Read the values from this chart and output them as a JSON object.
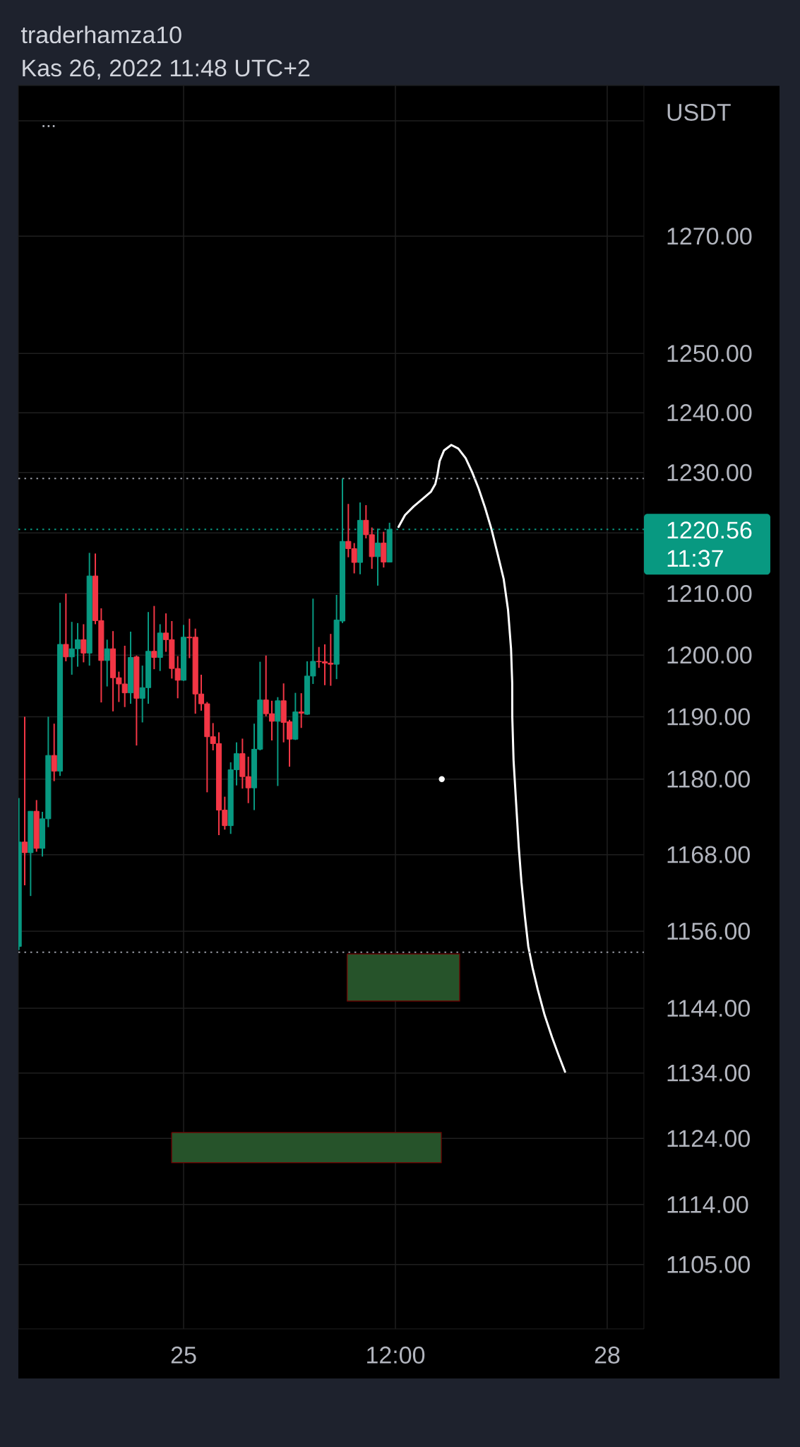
{
  "chart_data": {
    "type": "candlestick",
    "title": "traderhamza10",
    "subtitle": "Kas 26, 2022 11:48 UTC+2",
    "ylabel": "USDT",
    "x": [
      "2022-11-23T20:00",
      "2022-11-23T21:00",
      "2022-11-23T22:00",
      "2022-11-23T23:00",
      "2022-11-24T00:00",
      "2022-11-24T01:00",
      "2022-11-24T02:00",
      "2022-11-24T03:00",
      "2022-11-24T04:00",
      "2022-11-24T05:00",
      "2022-11-24T06:00",
      "2022-11-24T07:00",
      "2022-11-24T08:00",
      "2022-11-24T09:00",
      "2022-11-24T10:00",
      "2022-11-24T11:00",
      "2022-11-24T12:00",
      "2022-11-24T13:00",
      "2022-11-24T14:00",
      "2022-11-24T15:00",
      "2022-11-24T16:00",
      "2022-11-24T17:00",
      "2022-11-24T18:00",
      "2022-11-24T19:00",
      "2022-11-24T20:00",
      "2022-11-24T21:00",
      "2022-11-24T22:00",
      "2022-11-24T23:00",
      "2022-11-25T00:00",
      "2022-11-25T01:00",
      "2022-11-25T02:00",
      "2022-11-25T03:00",
      "2022-11-25T04:00",
      "2022-11-25T05:00",
      "2022-11-25T06:00",
      "2022-11-25T07:00",
      "2022-11-25T08:00",
      "2022-11-25T09:00",
      "2022-11-25T10:00",
      "2022-11-25T11:00",
      "2022-11-25T12:00",
      "2022-11-25T13:00",
      "2022-11-25T14:00",
      "2022-11-25T15:00",
      "2022-11-25T16:00",
      "2022-11-25T17:00",
      "2022-11-25T18:00",
      "2022-11-25T19:00",
      "2022-11-25T20:00",
      "2022-11-25T21:00",
      "2022-11-25T22:00",
      "2022-11-25T23:00",
      "2022-11-26T00:00",
      "2022-11-26T01:00",
      "2022-11-26T02:00",
      "2022-11-26T03:00",
      "2022-11-26T04:00",
      "2022-11-26T05:00",
      "2022-11-26T06:00",
      "2022-11-26T07:00",
      "2022-11-26T08:00",
      "2022-11-26T09:00",
      "2022-11-26T10:00",
      "2022-11-26T11:00"
    ],
    "ohlc": [
      [
        1153.6,
        1177.0,
        1153.0,
        1170.0
      ],
      [
        1170.0,
        1190.0,
        1163.2,
        1168.3
      ],
      [
        1168.3,
        1174.9,
        1161.5,
        1174.9
      ],
      [
        1174.9,
        1176.7,
        1168.5,
        1169.0
      ],
      [
        1169.0,
        1174.8,
        1167.7,
        1173.7
      ],
      [
        1173.7,
        1190.0,
        1172.4,
        1183.8
      ],
      [
        1183.8,
        1188.9,
        1179.7,
        1181.3
      ],
      [
        1181.3,
        1208.5,
        1180.5,
        1201.7
      ],
      [
        1201.7,
        1210.0,
        1199.0,
        1199.7
      ],
      [
        1199.7,
        1205.4,
        1196.8,
        1201.0
      ],
      [
        1201.0,
        1205.2,
        1198.1,
        1202.5
      ],
      [
        1202.5,
        1205.0,
        1198.8,
        1200.3
      ],
      [
        1200.3,
        1216.7,
        1198.3,
        1212.9
      ],
      [
        1212.9,
        1216.6,
        1205.0,
        1205.6
      ],
      [
        1205.6,
        1207.6,
        1192.3,
        1199.1
      ],
      [
        1199.1,
        1202.5,
        1194.9,
        1201.0
      ],
      [
        1201.0,
        1203.9,
        1190.9,
        1196.3
      ],
      [
        1196.3,
        1197.3,
        1192.4,
        1195.3
      ],
      [
        1195.3,
        1201.5,
        1191.6,
        1193.9
      ],
      [
        1193.9,
        1203.8,
        1192.1,
        1199.6
      ],
      [
        1199.7,
        1199.9,
        1185.4,
        1193.0
      ],
      [
        1193.0,
        1198.3,
        1189.1,
        1194.7
      ],
      [
        1194.7,
        1207.0,
        1192.1,
        1200.6
      ],
      [
        1200.6,
        1208.0,
        1197.7,
        1199.6
      ],
      [
        1199.6,
        1205.0,
        1197.4,
        1203.6
      ],
      [
        1203.6,
        1206.8,
        1200.5,
        1202.5
      ],
      [
        1202.5,
        1205.5,
        1196.2,
        1197.8
      ],
      [
        1197.8,
        1199.8,
        1193.0,
        1195.9
      ],
      [
        1195.9,
        1204.9,
        1195.8,
        1202.9
      ],
      [
        1202.9,
        1205.9,
        1199.5,
        1202.8
      ],
      [
        1202.9,
        1204.3,
        1190.5,
        1193.7
      ],
      [
        1193.7,
        1196.8,
        1191.0,
        1192.1
      ],
      [
        1192.1,
        1192.4,
        1177.9,
        1186.8
      ],
      [
        1186.8,
        1189.0,
        1184.6,
        1185.7
      ],
      [
        1185.7,
        1187.5,
        1171.1,
        1175.1
      ],
      [
        1175.1,
        1177.2,
        1172.0,
        1172.6
      ],
      [
        1172.6,
        1182.7,
        1171.3,
        1181.5
      ],
      [
        1181.5,
        1185.9,
        1179.0,
        1184.1
      ],
      [
        1184.1,
        1186.5,
        1178.5,
        1180.4
      ],
      [
        1180.4,
        1183.6,
        1176.2,
        1178.6
      ],
      [
        1178.6,
        1188.9,
        1175.1,
        1184.8
      ],
      [
        1184.8,
        1198.9,
        1184.6,
        1192.7
      ],
      [
        1192.7,
        1199.9,
        1190.1,
        1190.5
      ],
      [
        1190.5,
        1192.6,
        1186.2,
        1189.3
      ],
      [
        1189.3,
        1193.2,
        1178.9,
        1192.6
      ],
      [
        1192.6,
        1195.4,
        1185.9,
        1189.1
      ],
      [
        1189.2,
        1189.5,
        1182.0,
        1186.4
      ],
      [
        1186.4,
        1193.9,
        1186.3,
        1190.8
      ],
      [
        1190.8,
        1193.8,
        1188.2,
        1190.6
      ],
      [
        1190.4,
        1199.0,
        1190.3,
        1196.6
      ],
      [
        1196.6,
        1209.2,
        1195.3,
        1199.0
      ],
      [
        1199.0,
        1201.3,
        1197.9,
        1198.9
      ],
      [
        1198.9,
        1201.7,
        1195.1,
        1198.7
      ],
      [
        1198.7,
        1203.4,
        1195.0,
        1198.5
      ],
      [
        1198.5,
        1209.8,
        1196.1,
        1205.7
      ],
      [
        1205.5,
        1229.0,
        1205.2,
        1218.6
      ],
      [
        1218.6,
        1224.8,
        1216.0,
        1217.4
      ],
      [
        1217.4,
        1218.3,
        1213.3,
        1215.1
      ],
      [
        1215.1,
        1225.0,
        1213.2,
        1222.1
      ],
      [
        1222.1,
        1224.6,
        1219.1,
        1219.7
      ],
      [
        1219.7,
        1220.9,
        1214.1,
        1216.1
      ],
      [
        1216.1,
        1220.7,
        1211.3,
        1218.3
      ],
      [
        1218.3,
        1220.2,
        1214.3,
        1215.2
      ],
      [
        1215.2,
        1221.7,
        1215.2,
        1220.56
      ]
    ],
    "colors": [
      "#089981",
      "#f23645",
      "#089981",
      "#f23645",
      "#089981",
      "#089981",
      "#f23645",
      "#089981",
      "#f23645",
      "#089981",
      "#089981",
      "#f23645",
      "#089981",
      "#f23645",
      "#f23645",
      "#089981",
      "#f23645",
      "#f23645",
      "#f23645",
      "#089981",
      "#f23645",
      "#089981",
      "#089981",
      "#f23645",
      "#089981",
      "#f23645",
      "#f23645",
      "#f23645",
      "#089981",
      "#f23645",
      "#f23645",
      "#f23645",
      "#f23645",
      "#f23645",
      "#f23645",
      "#f23645",
      "#089981",
      "#089981",
      "#f23645",
      "#f23645",
      "#089981",
      "#089981",
      "#f23645",
      "#f23645",
      "#089981",
      "#f23645",
      "#f23645",
      "#089981",
      "#f23645",
      "#089981",
      "#089981",
      "#f23645",
      "#f23645",
      "#f23645",
      "#089981",
      "#089981",
      "#f23645",
      "#f23645",
      "#089981",
      "#f23645",
      "#f23645",
      "#089981",
      "#f23645",
      "#089981"
    ],
    "series": [
      {
        "type": "area",
        "color": "#26532a",
        "x": [
          "2022-11-26T03:48",
          "2022-11-26T22:55"
        ],
        "values": [
          null,
          null
        ],
        "lower": [
          1145.1,
          1145.1
        ],
        "upper": [
          1152.4,
          1152.4
        ]
      },
      {
        "type": "area",
        "color": "#26532a",
        "x": [
          "2022-11-24T21:58",
          "2022-11-26T19:48"
        ],
        "values": [
          null,
          null
        ],
        "lower": [
          1120.3,
          1120.3
        ],
        "upper": [
          1124.9,
          1124.9
        ]
      },
      {
        "type": "line",
        "color": "#ffffff",
        "x": [
          "2022-11-26T12:32",
          "2022-11-26T13:38",
          "2022-11-26T15:07",
          "2022-11-26T16:35",
          "2022-11-26T18:03",
          "2022-11-26T18:47",
          "2022-11-26T19:09",
          "2022-11-26T19:31",
          "2022-11-26T20:16",
          "2022-11-26T21:30",
          "2022-11-26T22:41",
          "2022-11-26T23:56",
          "2022-11-27T01:02",
          "2022-11-27T02:08",
          "2022-11-27T03:14",
          "2022-11-27T04:20",
          "2022-11-27T05:26",
          "2022-11-27T06:24",
          "2022-11-27T07:08",
          "2022-11-27T07:39",
          "2022-11-27T07:51",
          "2022-11-27T07:52",
          "2022-11-27T08:05",
          "2022-11-27T08:31",
          "2022-11-27T08:58",
          "2022-11-27T09:25",
          "2022-11-27T10:00",
          "2022-11-27T10:35",
          "2022-11-27T11:19",
          "2022-11-27T12:11",
          "2022-11-27T13:22",
          "2022-11-27T14:37",
          "2022-11-27T15:43",
          "2022-11-27T16:50"
        ],
        "values": [
          1221.0,
          1222.9,
          1224.4,
          1225.6,
          1226.8,
          1228.1,
          1229.7,
          1231.9,
          1233.7,
          1234.6,
          1234.0,
          1232.4,
          1230.1,
          1227.4,
          1224.2,
          1220.6,
          1216.3,
          1212.4,
          1207.4,
          1201.1,
          1195.5,
          1189.9,
          1183.0,
          1176.1,
          1169.2,
          1163.7,
          1158.3,
          1153.6,
          1150.2,
          1146.9,
          1142.9,
          1139.5,
          1136.8,
          1134.2
        ]
      },
      {
        "type": "scatter",
        "color": "#ffffff",
        "marker": "circle",
        "x": [
          "2022-11-26T19:53"
        ],
        "values": [
          1180.0
        ]
      }
    ],
    "ref_lines": [
      {
        "axis": "y",
        "value": 1229.0,
        "color": "#9598a1",
        "line_style": "dotted"
      },
      {
        "axis": "y",
        "value": 1220.56,
        "label": "1220.56",
        "color": "#089981",
        "line_style": "dotted"
      },
      {
        "axis": "y",
        "value": 1152.7,
        "color": "#9598a1",
        "line_style": "dotted"
      }
    ],
    "annotations": [
      "...",
      "11:37"
    ],
    "log": true,
    "grid": true,
    "xlim": [
      "2022-11-23T19:55",
      "2022-11-28T06:14"
    ],
    "ylim": [
      1095.4,
      1296.2
    ],
    "xticks": [
      {
        "value": "2022-11-25T00:00",
        "label": "25"
      },
      {
        "value": "2022-11-26T12:00",
        "label": "12:00"
      },
      {
        "value": "2022-11-28T00:00",
        "label": "28"
      }
    ],
    "yticks": [
      {
        "value": 1290,
        "label": null
      },
      {
        "value": 1270,
        "label": "1270.00"
      },
      {
        "value": 1250,
        "label": "1250.00"
      },
      {
        "value": 1240,
        "label": "1240.00"
      },
      {
        "value": 1230,
        "label": "1230.00"
      },
      {
        "value": 1220,
        "label": null
      },
      {
        "value": 1210,
        "label": "1210.00"
      },
      {
        "value": 1200,
        "label": "1200.00"
      },
      {
        "value": 1190,
        "label": "1190.00"
      },
      {
        "value": 1180,
        "label": "1180.00"
      },
      {
        "value": 1168,
        "label": "1168.00"
      },
      {
        "value": 1156,
        "label": "1156.00"
      },
      {
        "value": 1144,
        "label": "1144.00"
      },
      {
        "value": 1134,
        "label": "1134.00"
      },
      {
        "value": 1124,
        "label": "1124.00"
      },
      {
        "value": 1114,
        "label": "1114.00"
      },
      {
        "value": 1105,
        "label": "1105.00"
      }
    ]
  }
}
